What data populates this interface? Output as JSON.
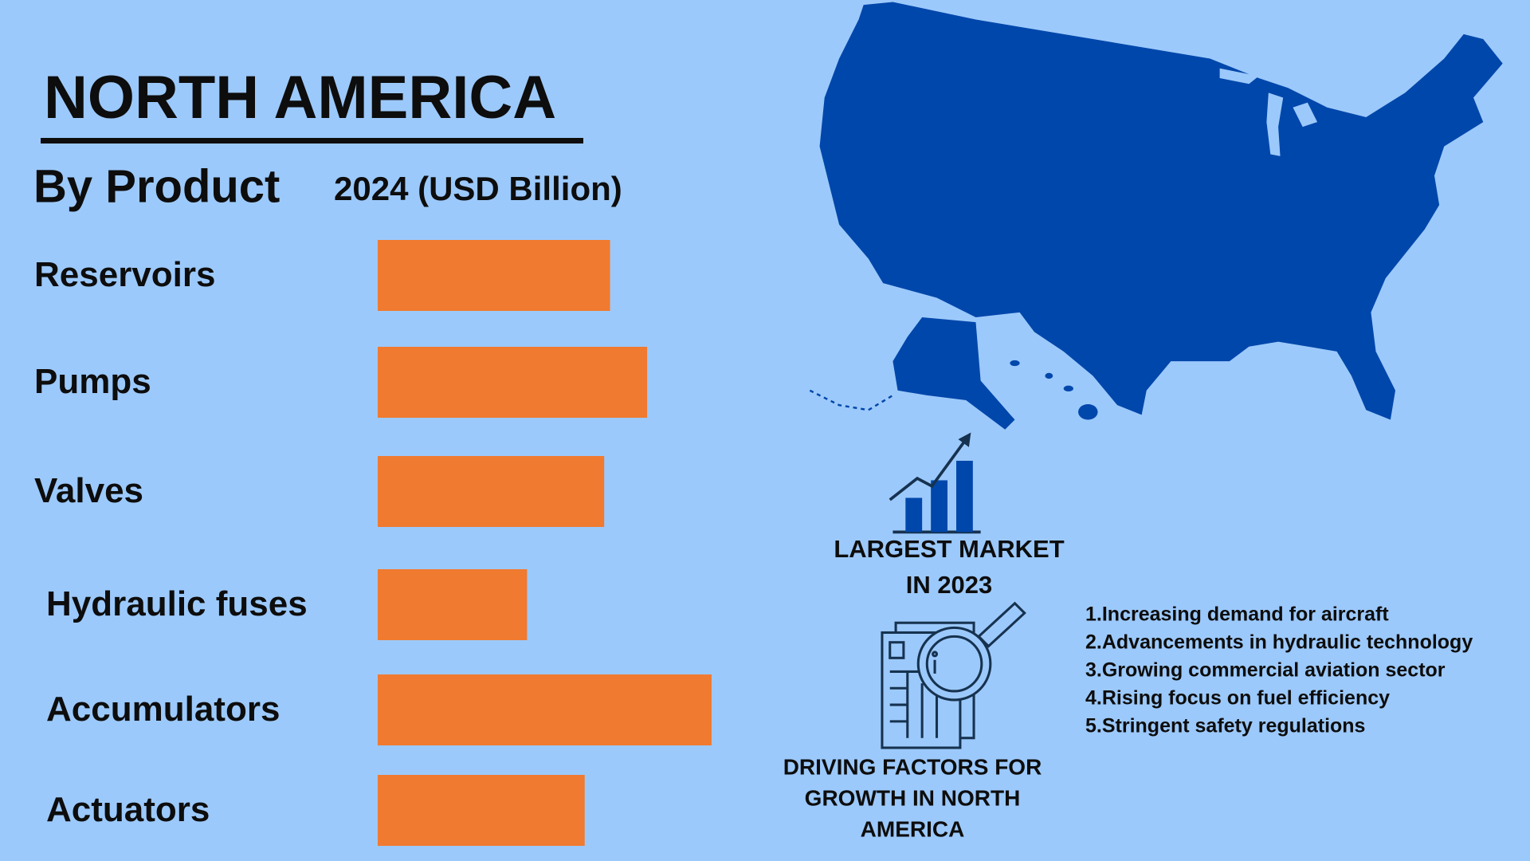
{
  "header": {
    "title": "NORTH AMERICA"
  },
  "chart_data": {
    "type": "bar",
    "title": "By Product",
    "subtitle": "2024 (USD Billion)",
    "categories": [
      "Reservoirs",
      "Pumps",
      "Valves",
      "Hydraulic fuses",
      "Accumulators",
      "Actuators"
    ],
    "values": [
      2.38,
      2.76,
      2.32,
      1.53,
      3.42,
      2.12
    ],
    "color": "#f07a30"
  },
  "callouts": {
    "largest_market": [
      "LARGEST MARKET",
      "IN 2023"
    ],
    "driving_factors_title": [
      "DRIVING FACTORS FOR",
      "GROWTH IN NORTH",
      "AMERICA"
    ],
    "driving_factors": [
      "1.Increasing demand for aircraft",
      "2.Advancements in hydraulic technology",
      "3.Growing commercial aviation sector",
      "4.Rising focus on fuel efficiency",
      "5.Stringent safety regulations"
    ]
  }
}
